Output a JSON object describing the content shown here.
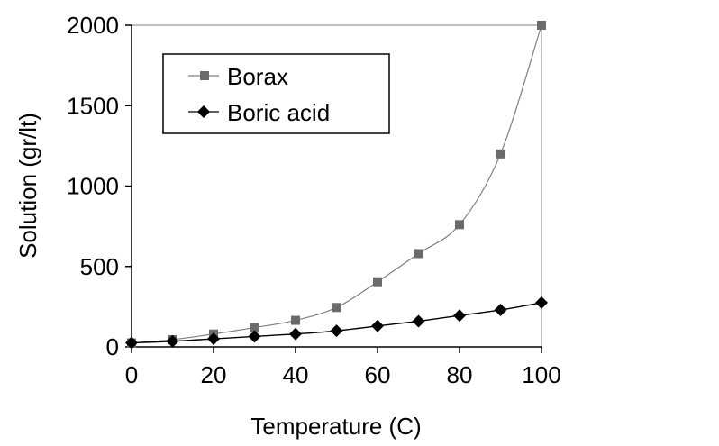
{
  "chart_data": {
    "type": "line",
    "title": "",
    "xlabel": "Temperature (C)",
    "ylabel": "Solution (gr/lt)",
    "xlim": [
      0,
      100
    ],
    "ylim": [
      0,
      2000
    ],
    "xticks": [
      0,
      20,
      40,
      60,
      80,
      100
    ],
    "yticks": [
      0,
      500,
      1000,
      1500,
      2000
    ],
    "x": [
      0,
      10,
      20,
      30,
      40,
      50,
      60,
      70,
      80,
      90,
      100
    ],
    "grid": false,
    "legend_position": "top-left",
    "series": [
      {
        "name": "Borax",
        "marker": "square",
        "color": "#7f7f7f",
        "values": [
          25,
          45,
          80,
          120,
          165,
          245,
          405,
          580,
          760,
          1200,
          2000
        ]
      },
      {
        "name": "Boric acid",
        "marker": "diamond",
        "color": "#000000",
        "values": [
          25,
          35,
          50,
          65,
          80,
          100,
          130,
          160,
          195,
          230,
          275
        ]
      }
    ]
  }
}
